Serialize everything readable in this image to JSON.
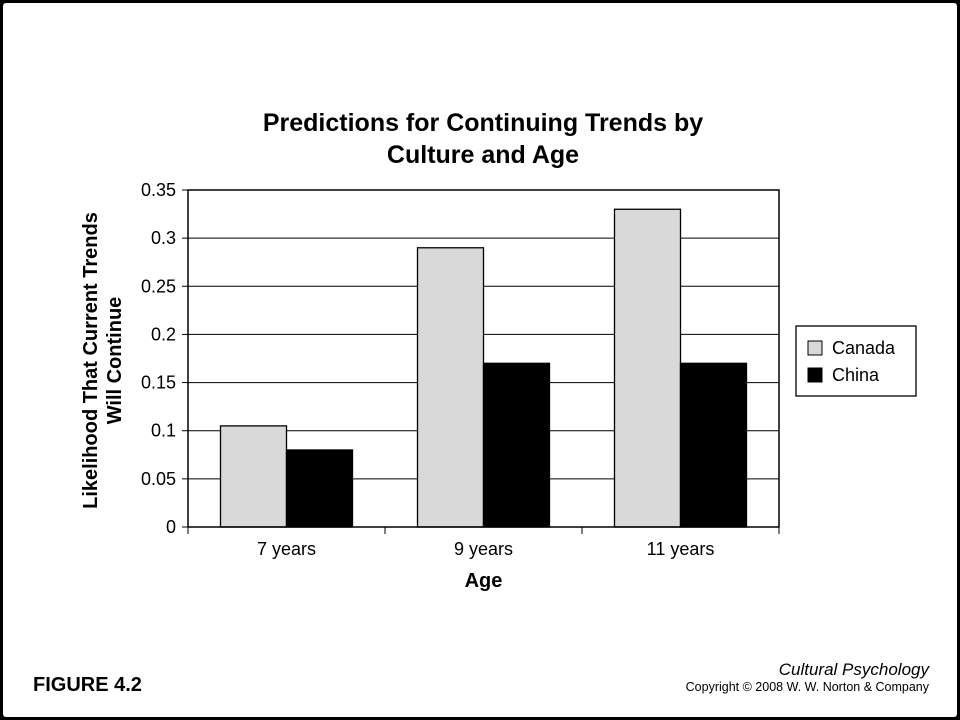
{
  "chart_data": {
    "type": "bar",
    "title_lines": [
      "Predictions for Continuing Trends by",
      "Culture and Age"
    ],
    "xlabel": "Age",
    "ylabel_lines": [
      "Likelihood That Current Trends",
      "Will Continue"
    ],
    "categories": [
      "7 years",
      "9 years",
      "11 years"
    ],
    "series": [
      {
        "name": "Canada",
        "color": "#d9d9d9",
        "values": [
          0.105,
          0.29,
          0.33
        ]
      },
      {
        "name": "China",
        "color": "#000000",
        "values": [
          0.08,
          0.17,
          0.17
        ]
      }
    ],
    "ylim": [
      0,
      0.35
    ],
    "yticks": [
      "0",
      "0.05",
      "0.1",
      "0.15",
      "0.2",
      "0.25",
      "0.3",
      "0.35"
    ],
    "grid": true,
    "legend_position": "right"
  },
  "footer": {
    "figure_label": "FIGURE 4.2",
    "book_title": "Cultural Psychology",
    "copyright": "Copyright © 2008 W. W. Norton & Company"
  }
}
